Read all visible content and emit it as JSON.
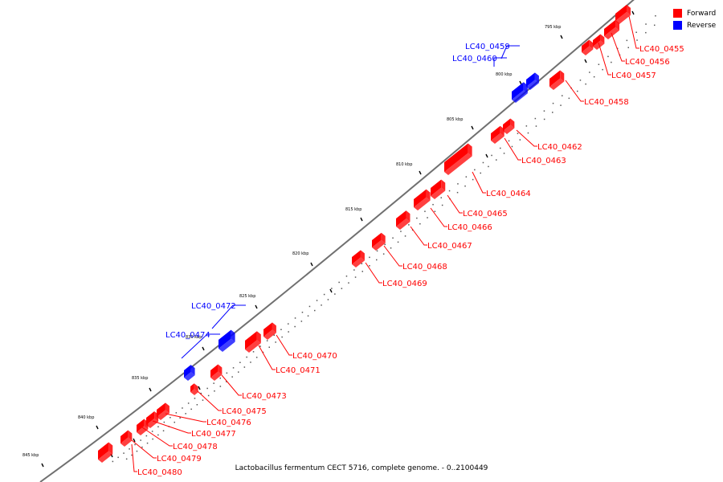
{
  "legend": {
    "forward_label": "Forward",
    "reverse_label": "Reverse",
    "forward_color": "#ff0000",
    "reverse_color": "#0000ff"
  },
  "caption": "Lactobacillus fermentum CECT 5716, complete genome. - 0..2100449",
  "ticks": [
    {
      "label": "795 kbp"
    },
    {
      "label": "800 kbp"
    },
    {
      "label": "805 kbp"
    },
    {
      "label": "810 kbp"
    },
    {
      "label": "815 kbp"
    },
    {
      "label": "820 kbp"
    },
    {
      "label": "825 kbp"
    },
    {
      "label": "830 kbp"
    },
    {
      "label": "835 kbp"
    },
    {
      "label": "840 kbp"
    },
    {
      "label": "845 kbp"
    }
  ],
  "genes": [
    {
      "name": "LC40_0455",
      "strand": "forward"
    },
    {
      "name": "LC40_0456",
      "strand": "forward"
    },
    {
      "name": "LC40_0457",
      "strand": "forward"
    },
    {
      "name": "LC40_0458",
      "strand": "forward"
    },
    {
      "name": "LC40_0459",
      "strand": "reverse"
    },
    {
      "name": "LC40_0460",
      "strand": "reverse"
    },
    {
      "name": "LC40_0462",
      "strand": "forward"
    },
    {
      "name": "LC40_0463",
      "strand": "forward"
    },
    {
      "name": "LC40_0464",
      "strand": "forward"
    },
    {
      "name": "LC40_0465",
      "strand": "forward"
    },
    {
      "name": "LC40_0466",
      "strand": "forward"
    },
    {
      "name": "LC40_0467",
      "strand": "forward"
    },
    {
      "name": "LC40_0468",
      "strand": "forward"
    },
    {
      "name": "LC40_0469",
      "strand": "forward"
    },
    {
      "name": "LC40_0470",
      "strand": "forward"
    },
    {
      "name": "LC40_0471",
      "strand": "forward"
    },
    {
      "name": "LC40_0472",
      "strand": "reverse"
    },
    {
      "name": "LC40_0473",
      "strand": "forward"
    },
    {
      "name": "LC40_0474",
      "strand": "reverse"
    },
    {
      "name": "LC40_0475",
      "strand": "forward"
    },
    {
      "name": "LC40_0476",
      "strand": "forward"
    },
    {
      "name": "LC40_0477",
      "strand": "forward"
    },
    {
      "name": "LC40_0478",
      "strand": "forward"
    },
    {
      "name": "LC40_0479",
      "strand": "forward"
    },
    {
      "name": "LC40_0480",
      "strand": "forward"
    }
  ]
}
